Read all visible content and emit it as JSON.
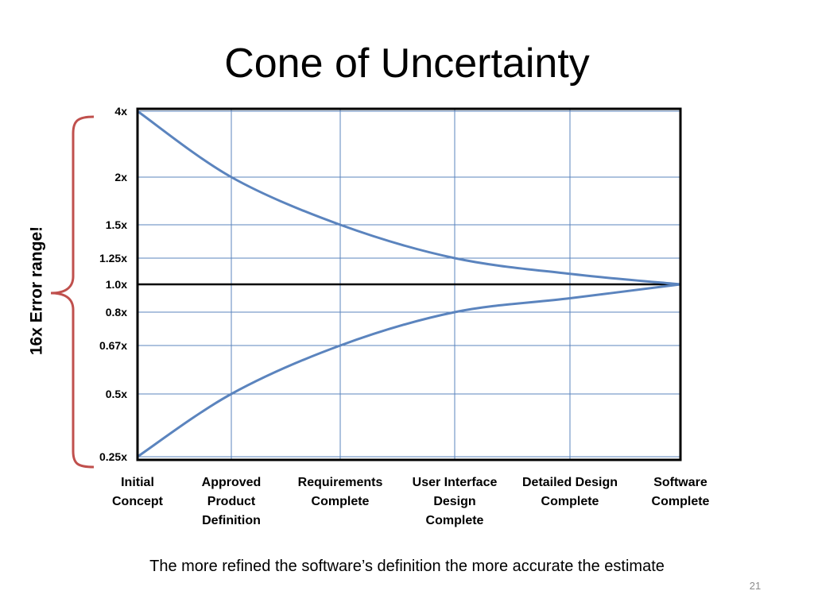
{
  "slide": {
    "title": "Cone of Uncertainty",
    "caption": "The more refined the software’s definition the more accurate the estimate",
    "page_number": "21",
    "side_label": "16x Error range!"
  },
  "colors": {
    "curve": "#5b84be",
    "grid": "#5b84be",
    "frame": "#000000",
    "brace": "#c0504d",
    "baseline": "#000000"
  },
  "chart_data": {
    "type": "line",
    "categories": [
      [
        "Initial",
        "Concept"
      ],
      [
        "Approved",
        "Product",
        "Definition"
      ],
      [
        "Requirements",
        "Complete"
      ],
      [
        "User Interface",
        "Design",
        "Complete"
      ],
      [
        "Detailed Design",
        "Complete"
      ],
      [
        "Software",
        "Complete"
      ]
    ],
    "y_ticks": [
      {
        "value": 4,
        "label": "4x"
      },
      {
        "value": 2,
        "label": "2x"
      },
      {
        "value": 1.5,
        "label": "1.5x"
      },
      {
        "value": 1.25,
        "label": "1.25x"
      },
      {
        "value": 1.0,
        "label": "1.0x"
      },
      {
        "value": 0.8,
        "label": "0.8x"
      },
      {
        "value": 0.67,
        "label": "0.67x"
      },
      {
        "value": 0.5,
        "label": "0.5x"
      },
      {
        "value": 0.25,
        "label": "0.25x"
      }
    ],
    "series": [
      {
        "values": [
          4,
          2,
          1.5,
          1.25,
          1.1,
          1.0
        ]
      },
      {
        "values": [
          0.25,
          0.5,
          0.67,
          0.8,
          0.9,
          1.0
        ]
      }
    ],
    "baseline": 1.0,
    "grid": true
  }
}
